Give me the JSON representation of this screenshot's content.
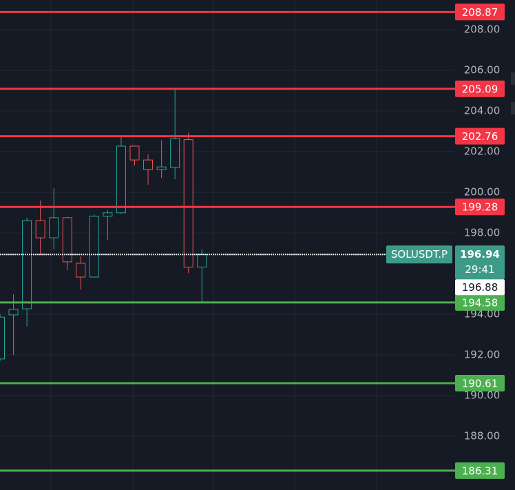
{
  "chart_data": {
    "type": "candlestick",
    "symbol": "SOLUSDT.P",
    "up_color": "#26a69a",
    "down_color": "#ef5350",
    "open": [
      191.8,
      193.97,
      194.27,
      198.61,
      197.76,
      198.75,
      196.51,
      195.83,
      198.82,
      198.99,
      202.27,
      201.59,
      201.12,
      201.22,
      202.59,
      196.32
    ],
    "high": [
      194.0,
      194.98,
      198.75,
      199.59,
      200.2,
      198.8,
      196.85,
      198.9,
      199.12,
      202.78,
      202.3,
      201.86,
      202.56,
      205.05,
      202.93,
      197.19
    ],
    "low": [
      191.7,
      192.0,
      193.4,
      196.92,
      197.19,
      196.17,
      195.22,
      195.8,
      197.66,
      198.95,
      201.32,
      200.37,
      200.71,
      200.64,
      196.03,
      194.61
    ],
    "close": [
      193.86,
      194.24,
      198.61,
      197.76,
      198.75,
      196.58,
      195.83,
      198.82,
      198.99,
      202.27,
      201.59,
      201.12,
      201.25,
      202.63,
      196.32,
      196.94
    ],
    "ylim": [
      185.356,
      209.458
    ],
    "yticks": [
      {
        "value": 188,
        "label": "188.00"
      },
      {
        "value": 190,
        "label": "190.00"
      },
      {
        "value": 192,
        "label": "192.00"
      },
      {
        "value": 194,
        "label": "194.00"
      },
      {
        "value": 198,
        "label": "198.00"
      },
      {
        "value": 200,
        "label": "200.00"
      },
      {
        "value": 202,
        "label": "202.00"
      },
      {
        "value": 204,
        "label": "204.00"
      },
      {
        "value": 206,
        "label": "206.00"
      },
      {
        "value": 208,
        "label": "208.00"
      }
    ],
    "grid": true,
    "levels": [
      {
        "value": 208.87,
        "color": "#f23645"
      },
      {
        "value": 205.09,
        "color": "#f23645"
      },
      {
        "value": 202.76,
        "color": "#f23645"
      },
      {
        "value": 199.28,
        "color": "#f23645"
      },
      {
        "value": 194.58,
        "color": "#4caf50"
      },
      {
        "value": 190.61,
        "color": "#4caf50"
      },
      {
        "value": 186.31,
        "color": "#4caf50"
      }
    ],
    "last_price": 196.94,
    "last_price_color": "#3d9a88",
    "countdown": "29:41",
    "bid_price": 196.88
  }
}
